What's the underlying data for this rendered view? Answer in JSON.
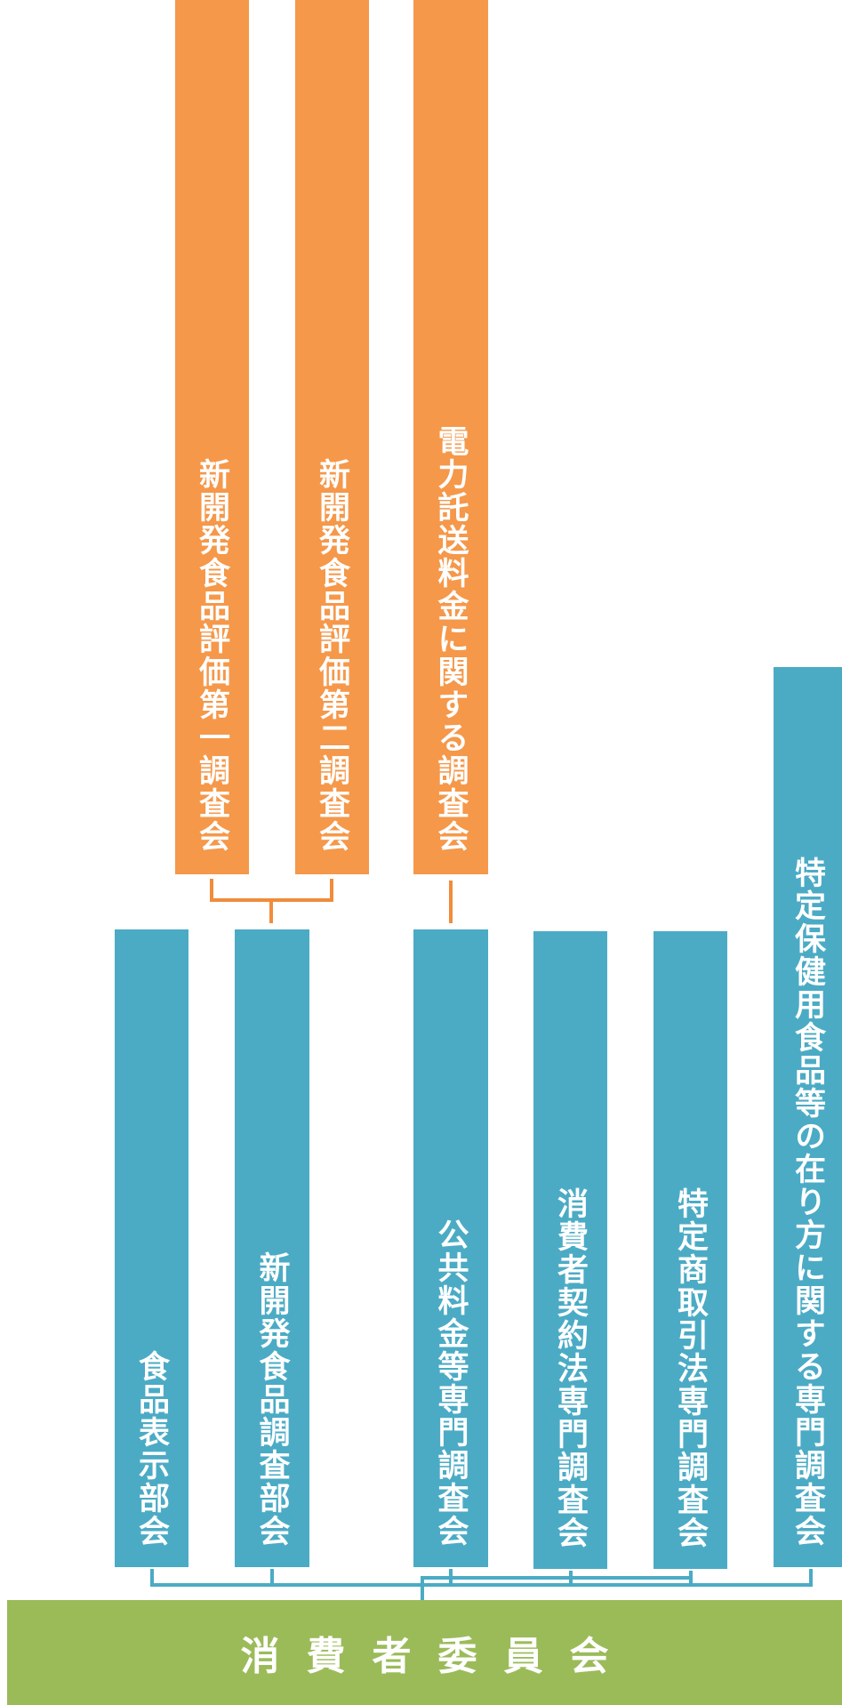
{
  "subcommittees": [
    {
      "label": "新開発食品評価第一調査会"
    },
    {
      "label": "新開発食品評価第二調査会"
    },
    {
      "label": "電力託送料金に関する調査会"
    }
  ],
  "committees": [
    {
      "label": "食品表示部会"
    },
    {
      "label": "新開発食品調査部会"
    },
    {
      "label": "公共料金等専門調査会"
    },
    {
      "label": "消費者契約法専門調査会"
    },
    {
      "label": "特定商取引法専門調査会"
    },
    {
      "label": "特定保健用食品等の在り方に関する専門調査会"
    }
  ],
  "root": {
    "label": "消費者委員会"
  },
  "colors": {
    "subcommittee": "#f5984a",
    "committee": "#4babc5",
    "root": "#9bbb59",
    "sub_connector": "#f08c3c"
  }
}
